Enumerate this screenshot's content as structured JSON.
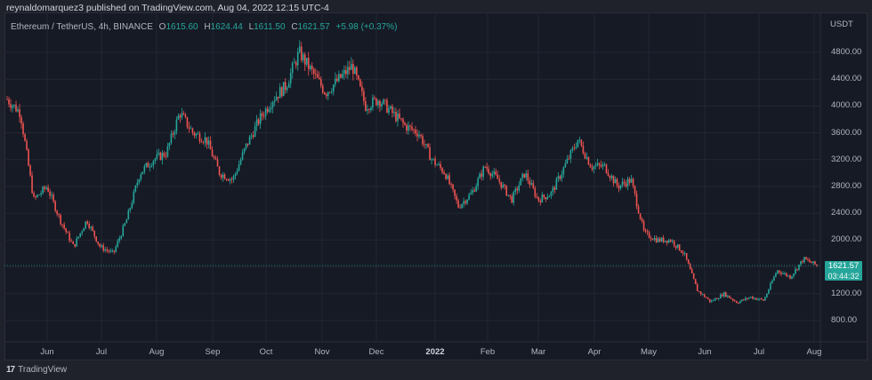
{
  "header": {
    "publish_line": "reynaldomarquez3 published on TradingView.com, Aug 04, 2022 12:15 UTC-4"
  },
  "legend": {
    "symbol": "Ethereum / TetherUS, 4h, BINANCE",
    "open_label": "O",
    "open": "1615.60",
    "high_label": "H",
    "high": "1624.44",
    "low_label": "L",
    "low": "1611.50",
    "close_label": "C",
    "close": "1621.57",
    "change": "+5.98 (+0.37%)"
  },
  "price_axis": {
    "unit": "USDT",
    "ticks": [
      "4800.00",
      "4400.00",
      "4000.00",
      "3600.00",
      "3200.00",
      "2800.00",
      "2400.00",
      "2000.00",
      "1200.00",
      "800.00"
    ]
  },
  "time_axis": {
    "ticks": [
      "Jun",
      "Jul",
      "Aug",
      "Sep",
      "Oct",
      "Nov",
      "Dec",
      "2022",
      "Feb",
      "Mar",
      "Apr",
      "May",
      "Jun",
      "Jul",
      "Aug"
    ]
  },
  "last_price": {
    "value": "1621.57",
    "countdown": "03:44:32"
  },
  "footer": {
    "brand_logo": "17",
    "brand_name": "TradingView"
  },
  "colors": {
    "up": "#26a69a",
    "down": "#ef5350",
    "background": "#161a25",
    "grid": "#232733"
  },
  "chart_data": {
    "type": "candlestick",
    "title": "Ethereum / TetherUS, 4h, BINANCE",
    "xlabel": "",
    "ylabel": "USDT",
    "ylim": [
      600,
      5000
    ],
    "grid": true,
    "x": [
      "2021-05-20",
      "2021-05-25",
      "2021-06-01",
      "2021-06-10",
      "2021-06-20",
      "2021-06-25",
      "2021-07-05",
      "2021-07-15",
      "2021-07-20",
      "2021-07-28",
      "2021-08-05",
      "2021-08-14",
      "2021-08-25",
      "2021-09-03",
      "2021-09-07",
      "2021-09-15",
      "2021-09-21",
      "2021-09-28",
      "2021-10-05",
      "2021-10-15",
      "2021-10-25",
      "2021-11-01",
      "2021-11-09",
      "2021-11-15",
      "2021-11-20",
      "2021-11-28",
      "2021-12-01",
      "2021-12-04",
      "2021-12-10",
      "2021-12-20",
      "2021-12-28",
      "2022-01-05",
      "2022-01-10",
      "2022-01-20",
      "2022-01-23",
      "2022-01-31",
      "2022-02-07",
      "2022-02-14",
      "2022-02-24",
      "2022-03-01",
      "2022-03-08",
      "2022-03-15",
      "2022-03-25",
      "2022-04-03",
      "2022-04-11",
      "2022-04-20",
      "2022-04-30",
      "2022-05-05",
      "2022-05-12",
      "2022-05-20",
      "2022-05-31",
      "2022-06-10",
      "2022-06-14",
      "2022-06-18",
      "2022-06-25",
      "2022-07-01",
      "2022-07-08",
      "2022-07-13",
      "2022-07-20",
      "2022-07-26",
      "2022-07-30",
      "2022-08-04"
    ],
    "close": [
      4100,
      3900,
      2600,
      2800,
      2300,
      1900,
      2300,
      1900,
      1800,
      2300,
      3000,
      3200,
      3300,
      3900,
      3600,
      3500,
      3000,
      2900,
      3400,
      3800,
      4100,
      4300,
      4800,
      4500,
      4200,
      4400,
      4600,
      4000,
      4100,
      3900,
      3700,
      3600,
      3200,
      3000,
      2500,
      2700,
      3100,
      2900,
      2600,
      3000,
      2600,
      2700,
      3100,
      3500,
      3100,
      3100,
      2800,
      2900,
      2100,
      2000,
      2000,
      1800,
      1250,
      1080,
      1200,
      1070,
      1150,
      1100,
      1550,
      1450,
      1720,
      1621.57
    ]
  }
}
